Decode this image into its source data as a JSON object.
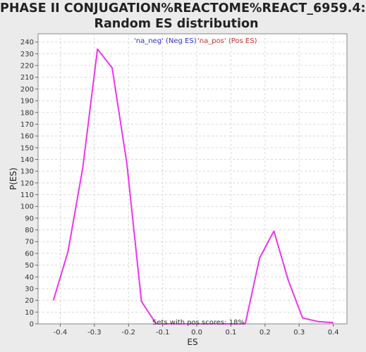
{
  "chart_data": {
    "type": "line",
    "title": "PHASE II CONJUGATION%REACTOME%REACT_6959.4: Random ES distribution",
    "title_lines": [
      "PHASE II CONJUGATION%REACTOME%REACT_6959.4:",
      "Random ES distribution"
    ],
    "xlabel": "ES",
    "ylabel": "P(ES)",
    "xlim": [
      -0.465,
      0.44
    ],
    "ylim": [
      0,
      247
    ],
    "x_ticks": [
      -0.4,
      -0.3,
      -0.2,
      -0.1,
      0.0,
      0.1,
      0.2,
      0.3,
      0.4
    ],
    "x_tick_labels": [
      "-0.4",
      "-0.3",
      "-0.2",
      "-0.1",
      "0.0",
      "0.1",
      "0.2",
      "0.3",
      "0.4"
    ],
    "y_ticks": [
      0,
      10,
      20,
      30,
      40,
      50,
      60,
      70,
      80,
      90,
      100,
      110,
      120,
      130,
      140,
      150,
      160,
      170,
      180,
      190,
      200,
      210,
      220,
      230,
      240
    ],
    "grid": true,
    "legend": {
      "placement": "top-center",
      "entries": [
        {
          "label": "'na_neg' (Neg ES)",
          "color": "#3333cc"
        },
        {
          "label": "'na_pos' (Pos ES)",
          "color": "#cc3333"
        }
      ]
    },
    "annotation": "Sets with pos scores: 18%",
    "series": [
      {
        "color": "#ee33ee",
        "x": [
          -0.42,
          -0.377,
          -0.334,
          -0.291,
          -0.248,
          -0.205,
          -0.162,
          -0.119,
          0.142,
          0.184,
          0.226,
          0.268,
          0.31,
          0.355,
          0.4
        ],
        "y": [
          20,
          62,
          133,
          234,
          218,
          137,
          19,
          0,
          0,
          56,
          79,
          37,
          5,
          2,
          1
        ]
      }
    ]
  }
}
